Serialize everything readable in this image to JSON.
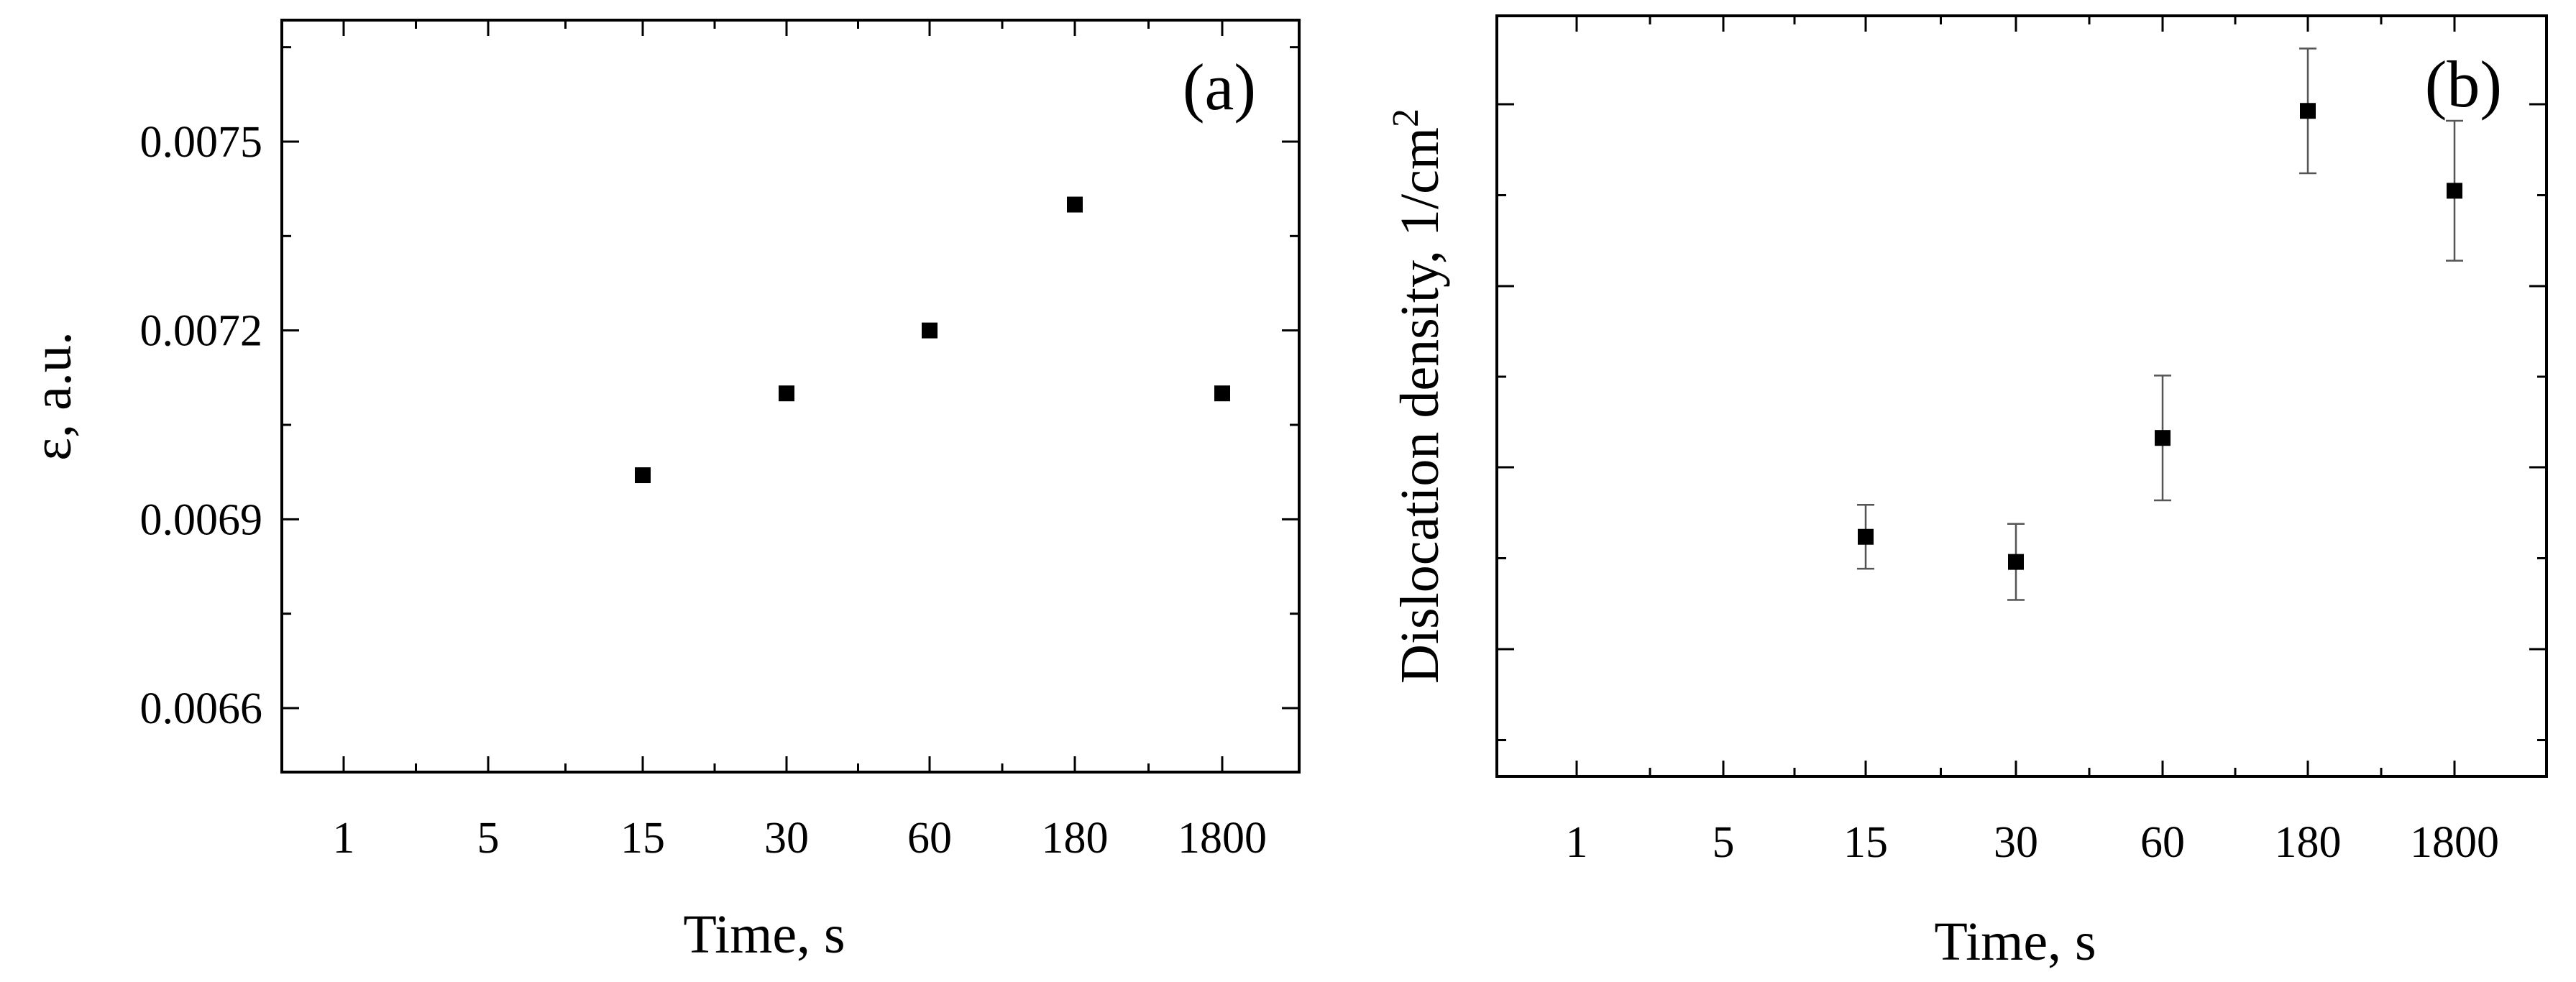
{
  "chart_data": [
    {
      "type": "scatter",
      "panel_label": "(a)",
      "xlabel": "Time, s",
      "ylabel": "ε, a.u.",
      "x_categories": [
        "1",
        "5",
        "15",
        "30",
        "60",
        "180",
        "1800"
      ],
      "y_ticks": [
        0.0066,
        0.0069,
        0.0072,
        0.0075
      ],
      "y_tick_labels": [
        "0.0066",
        "0.0069",
        "0.0072",
        "0.0075"
      ],
      "ylim": [
        0.0064,
        0.0076
      ],
      "grid": false,
      "marker_color": "#000000",
      "series": [
        {
          "x": [
            "15",
            "30",
            "60",
            "180",
            "1800"
          ],
          "y": [
            0.00697,
            0.0071,
            0.0072,
            0.0074,
            0.0071
          ]
        }
      ]
    },
    {
      "type": "scatter",
      "panel_label": "(b)",
      "xlabel": "Time, s",
      "ylabel": "Dislocation density,  1/cm",
      "ylabel_superscript": "2",
      "x_categories": [
        "1",
        "5",
        "15",
        "30",
        "60",
        "180",
        "1800"
      ],
      "y_tick_labels": [],
      "ylim": [
        0,
        10
      ],
      "grid": false,
      "marker_color": "#000000",
      "series": [
        {
          "x": [
            "15",
            "30",
            "60",
            "180",
            "1800"
          ],
          "y": [
            3.15,
            2.82,
            4.45,
            8.75,
            7.7
          ],
          "yerr": [
            0.42,
            0.5,
            0.82,
            0.82,
            0.92
          ]
        }
      ]
    }
  ]
}
